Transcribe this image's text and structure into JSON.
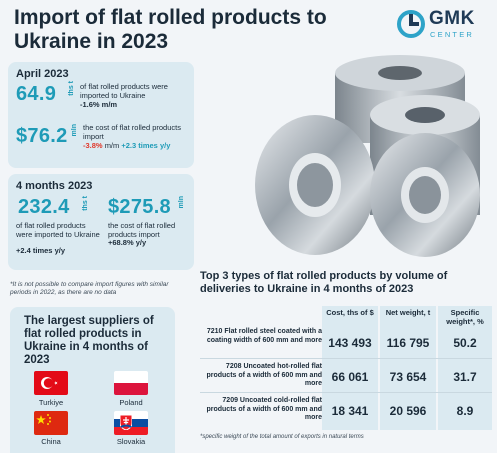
{
  "title": "Import of flat rolled products to Ukraine in 2023",
  "logo": {
    "name": "GMK",
    "sub": "CENTER"
  },
  "april": {
    "heading": "April 2023",
    "volume_value": "64.9",
    "volume_unit": "ths t",
    "volume_desc": "of flat rolled products were imported to Ukraine",
    "volume_change": "-1.6% m/m",
    "cost_value": "$76.2",
    "cost_unit": "mln",
    "cost_desc": "the cost of flat rolled products import",
    "cost_change_mm": "-3.8%",
    "cost_change_mm_suffix": "m/m",
    "cost_change_yy": "+2.3 times y/y"
  },
  "four_months": {
    "heading": "4 months 2023",
    "volume_value": "232.4",
    "volume_unit": "ths t",
    "volume_desc": "of flat rolled products were imported to Ukraine",
    "volume_change": "+2.4 times y/y",
    "cost_value": "$275.8",
    "cost_unit": "mln",
    "cost_desc": "the cost of flat rolled products import",
    "cost_change": "+68.8% y/y"
  },
  "note": "*It is not possible to compare import figures with similar periods in 2022, as there are no data",
  "suppliers": {
    "title": "The largest suppliers of flat rolled products in Ukraine in 4 months of 2023",
    "countries": [
      "Turkiye",
      "Poland",
      "China",
      "Slovakia"
    ]
  },
  "top3": {
    "title": "Top 3 types of flat rolled products by volume of deliveries to Ukraine in 4 months of 2023",
    "headers": {
      "cost": "Cost, ths of $",
      "weight": "Net weight, t",
      "share": "Specific weight*, %"
    },
    "rows": [
      {
        "label": "7210 Flat rolled steel coated with a coating width of 600 mm and more",
        "cost": "143 493",
        "weight": "116 795",
        "share": "50.2"
      },
      {
        "label": "7208 Uncoated hot-rolled flat products of a width of 600 mm and more",
        "cost": "66 061",
        "weight": "73 654",
        "share": "31.7"
      },
      {
        "label": "7209 Uncoated cold-rolled flat products of a width of 600 mm and more",
        "cost": "18 341",
        "weight": "20 596",
        "share": "8.9"
      }
    ],
    "footnote": "*specific weight of the total amount of exports in natural terms"
  },
  "colors": {
    "accent": "#1e9bb7",
    "negative": "#e0372a",
    "card": "#dbeaf1",
    "text": "#1b2b39"
  }
}
